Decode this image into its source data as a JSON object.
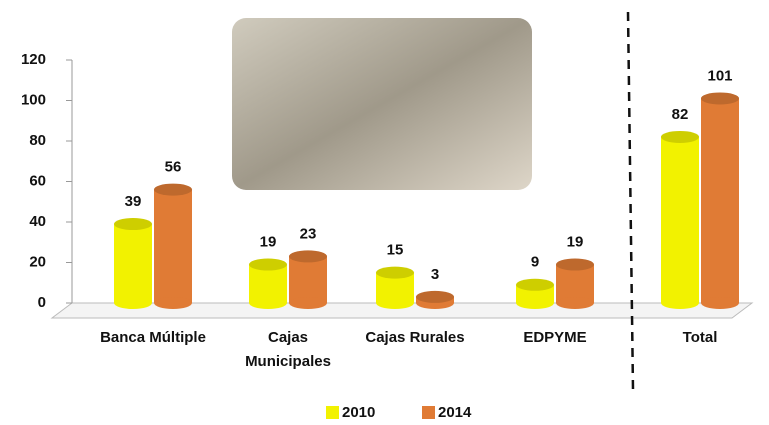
{
  "chart_data": {
    "type": "bar",
    "categories": [
      "Banca Múltiple",
      "Cajas Municipales",
      "Cajas Rurales",
      "EDPYME",
      "Total"
    ],
    "series": [
      {
        "name": "2010",
        "color": "#f2f200",
        "values": [
          39,
          19,
          15,
          9,
          82
        ]
      },
      {
        "name": "2014",
        "color": "#e07b35",
        "values": [
          56,
          23,
          3,
          19,
          101
        ]
      }
    ],
    "ylim": [
      0,
      120
    ],
    "yticks": [
      0,
      20,
      40,
      60,
      80,
      100,
      120
    ],
    "grid": false,
    "legend": "bottom"
  }
}
